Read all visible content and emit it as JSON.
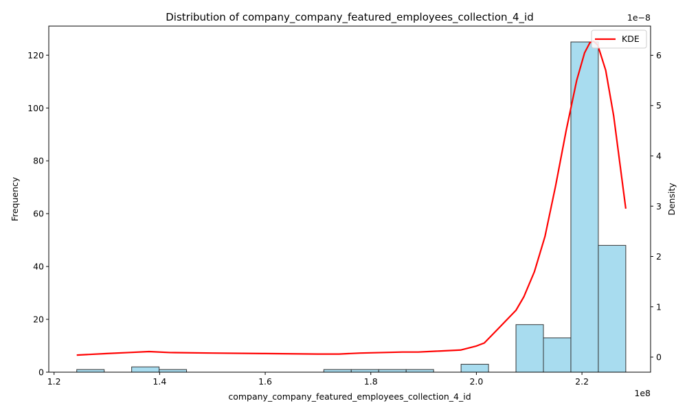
{
  "chart_data": {
    "type": "bar",
    "title": "Distribution of company_company_featured_employees_collection_4_id",
    "xlabel": "company_company_featured_employees_collection_4_id",
    "ylabel_left": "Frequency",
    "ylabel_right": "Density",
    "x_offset_text": "1e8",
    "y2_offset_text": "1e−8",
    "xlim": [
      1.19,
      2.33
    ],
    "ylim": [
      0,
      131
    ],
    "y2lim": [
      -0.3,
      6.58
    ],
    "x_ticks": [
      1.2,
      1.4,
      1.6,
      1.8,
      2.0,
      2.2
    ],
    "x_tick_labels": [
      "1.2",
      "1.4",
      "1.6",
      "1.8",
      "2.0",
      "2.2"
    ],
    "y_ticks": [
      0,
      20,
      40,
      60,
      80,
      100,
      120
    ],
    "y_tick_labels": [
      "0",
      "20",
      "40",
      "60",
      "80",
      "100",
      "120"
    ],
    "y2_ticks": [
      0,
      1,
      2,
      3,
      4,
      5,
      6
    ],
    "y2_tick_labels": [
      "0",
      "1",
      "2",
      "3",
      "4",
      "5",
      "6"
    ],
    "bin_edges": [
      1.243,
      1.295,
      1.347,
      1.399,
      1.451,
      1.503,
      1.555,
      1.607,
      1.659,
      1.711,
      1.763,
      1.815,
      1.867,
      1.919,
      1.971,
      2.023,
      2.075,
      2.127,
      2.179,
      2.231,
      2.283
    ],
    "counts": [
      1,
      0,
      2,
      1,
      0,
      0,
      0,
      0,
      0,
      1,
      1,
      1,
      1,
      0,
      3,
      0,
      18,
      13,
      125,
      48
    ],
    "series": [
      {
        "name": "KDE",
        "color": "#ff0000",
        "x": [
          1.243,
          1.3,
          1.34,
          1.38,
          1.42,
          1.5,
          1.6,
          1.7,
          1.74,
          1.78,
          1.82,
          1.86,
          1.89,
          1.93,
          1.97,
          2.0,
          2.015,
          2.04,
          2.075,
          2.09,
          2.11,
          2.13,
          2.15,
          2.17,
          2.19,
          2.205,
          2.215,
          2.222,
          2.23,
          2.245,
          2.26,
          2.283
        ],
        "y": [
          0.04,
          0.07,
          0.09,
          0.11,
          0.09,
          0.08,
          0.07,
          0.06,
          0.06,
          0.08,
          0.09,
          0.1,
          0.1,
          0.12,
          0.14,
          0.22,
          0.28,
          0.55,
          0.93,
          1.2,
          1.7,
          2.4,
          3.4,
          4.5,
          5.5,
          6.05,
          6.25,
          6.28,
          6.2,
          5.7,
          4.8,
          2.95
        ]
      }
    ],
    "bar_color": "#a8dcef",
    "legend": {
      "entries": [
        "KDE"
      ],
      "location": "upper right"
    },
    "grid": false
  }
}
